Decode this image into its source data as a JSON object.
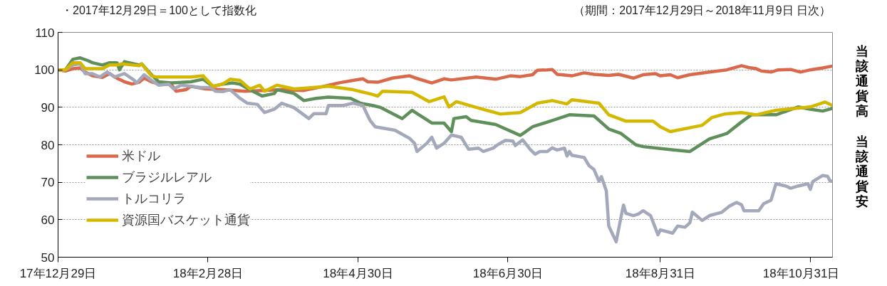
{
  "chart_data": {
    "type": "line",
    "title": "・2017年12月29日＝100として指数化",
    "subtitle": "（期間：2017年12月29日～2018年11月9日 日次）",
    "annotations": [
      "当該通貨高",
      "当該通貨安"
    ],
    "xlim": [
      "2017-12-29",
      "2018-11-09"
    ],
    "xticks": [
      {
        "value": "2017-12-29",
        "label": "17年12月29日"
      },
      {
        "value": "2018-02-28",
        "label": "18年2月28日"
      },
      {
        "value": "2018-04-30",
        "label": "18年4月30日"
      },
      {
        "value": "2018-06-30",
        "label": "18年6月30日"
      },
      {
        "value": "2018-08-31",
        "label": "18年8月31日"
      },
      {
        "value": "2018-10-31",
        "label": "18年10月31日"
      }
    ],
    "ylim": [
      50,
      110
    ],
    "yticks": [
      50,
      60,
      70,
      80,
      90,
      100,
      110
    ],
    "grid": "y",
    "legend": "bottom left",
    "series": [
      {
        "name": "米ドル",
        "color": "#d9694a",
        "x": [
          "2017-12-29",
          "2018-01-01",
          "2018-01-04",
          "2018-01-07",
          "2018-01-09",
          "2018-01-12",
          "2018-01-16",
          "2018-01-19",
          "2018-01-21",
          "2018-01-25",
          "2018-01-28",
          "2018-01-31",
          "2018-02-02",
          "2018-02-05",
          "2018-02-08",
          "2018-02-13",
          "2018-02-15",
          "2018-02-19",
          "2018-02-21",
          "2018-02-27",
          "2018-03-06",
          "2018-03-15",
          "2018-03-22",
          "2018-03-30",
          "2018-04-08",
          "2018-04-16",
          "2018-04-22",
          "2018-04-28",
          "2018-05-02",
          "2018-05-04",
          "2018-05-08",
          "2018-05-14",
          "2018-05-21",
          "2018-05-23",
          "2018-05-30",
          "2018-06-04",
          "2018-06-07",
          "2018-06-17",
          "2018-06-25",
          "2018-07-01",
          "2018-07-05",
          "2018-07-10",
          "2018-07-12",
          "2018-07-16",
          "2018-07-18",
          "2018-07-20",
          "2018-07-26",
          "2018-07-31",
          "2018-08-04",
          "2018-08-10",
          "2018-08-14",
          "2018-08-20",
          "2018-08-24",
          "2018-08-29",
          "2018-08-31",
          "2018-09-04",
          "2018-09-07",
          "2018-09-12",
          "2018-09-20",
          "2018-09-27",
          "2018-10-03",
          "2018-10-06",
          "2018-10-09",
          "2018-10-11",
          "2018-10-15",
          "2018-10-18",
          "2018-10-23",
          "2018-10-27",
          "2018-10-31",
          "2018-11-05",
          "2018-11-09"
        ],
        "values": [
          100,
          99.7,
          100.3,
          100.5,
          99.4,
          98.4,
          98,
          99,
          98.1,
          96.8,
          96.2,
          96.7,
          97.8,
          96.8,
          96.2,
          96.2,
          94.3,
          94.7,
          95.6,
          94.9,
          94.7,
          94.3,
          94.5,
          94.7,
          94.5,
          95.6,
          96.5,
          97.2,
          97.6,
          96.8,
          96.7,
          97.8,
          98.4,
          97.9,
          96.5,
          97.6,
          97.3,
          98.1,
          97.5,
          98.4,
          98.2,
          98.7,
          99.9,
          100,
          100.1,
          98.8,
          98.4,
          99.2,
          98.8,
          98.5,
          98.8,
          97.8,
          98.7,
          99,
          98.4,
          98.7,
          97.9,
          98.7,
          99.4,
          100,
          101.1,
          100.6,
          100.3,
          99.7,
          99.4,
          100,
          100.1,
          99.4,
          100,
          100.5,
          101
        ]
      },
      {
        "name": "ブラジルレアル",
        "color": "#5f8f5a",
        "x": [
          "2017-12-29",
          "2018-01-01",
          "2018-01-04",
          "2018-01-07",
          "2018-01-10",
          "2018-01-12",
          "2018-01-16",
          "2018-01-19",
          "2018-01-22",
          "2018-01-23",
          "2018-01-25",
          "2018-01-31",
          "2018-02-01",
          "2018-02-05",
          "2018-02-08",
          "2018-02-13",
          "2018-02-21",
          "2018-02-26",
          "2018-03-02",
          "2018-03-06",
          "2018-03-10",
          "2018-03-13",
          "2018-03-17",
          "2018-03-22",
          "2018-03-27",
          "2018-03-28",
          "2018-04-04",
          "2018-04-08",
          "2018-04-13",
          "2018-04-18",
          "2018-04-27",
          "2018-05-01",
          "2018-05-06",
          "2018-05-09",
          "2018-05-18",
          "2018-05-22",
          "2018-05-30",
          "2018-06-04",
          "2018-06-07",
          "2018-06-08",
          "2018-06-13",
          "2018-06-15",
          "2018-06-25",
          "2018-07-05",
          "2018-07-10",
          "2018-07-18",
          "2018-07-25",
          "2018-08-04",
          "2018-08-10",
          "2018-08-15",
          "2018-08-21",
          "2018-08-24",
          "2018-09-04",
          "2018-09-12",
          "2018-09-20",
          "2018-09-27",
          "2018-10-03",
          "2018-10-07",
          "2018-10-17",
          "2018-10-26",
          "2018-10-31",
          "2018-11-05",
          "2018-11-09"
        ],
        "values": [
          100,
          100,
          102.8,
          103.2,
          102.5,
          101.9,
          101.3,
          101.9,
          101.9,
          100,
          102.2,
          101.3,
          101.6,
          98.7,
          96.8,
          96.5,
          96.8,
          97.5,
          95.6,
          96.2,
          96.5,
          96.2,
          94.7,
          93,
          93.7,
          94.7,
          93.7,
          91.8,
          92.4,
          92.7,
          92.4,
          91.1,
          90.5,
          90,
          87,
          89.2,
          85.8,
          85.8,
          83.5,
          87,
          87.5,
          86.5,
          85.4,
          82.5,
          84.8,
          86.5,
          88,
          87.7,
          84.2,
          83,
          80,
          79.5,
          78.7,
          78.2,
          81.6,
          83,
          86.1,
          88,
          88,
          90.1,
          89.5,
          89,
          89.7
        ]
      },
      {
        "name": "トルコリラ",
        "color": "#a3a8bb",
        "x": [
          "2017-12-29",
          "2018-01-01",
          "2018-01-04",
          "2018-01-07",
          "2018-01-09",
          "2018-01-12",
          "2018-01-15",
          "2018-01-18",
          "2018-01-21",
          "2018-01-25",
          "2018-01-29",
          "2018-01-30",
          "2018-02-02",
          "2018-02-05",
          "2018-02-08",
          "2018-02-12",
          "2018-02-14",
          "2018-02-17",
          "2018-02-21",
          "2018-02-25",
          "2018-03-01",
          "2018-03-03",
          "2018-03-06",
          "2018-03-09",
          "2018-03-13",
          "2018-03-16",
          "2018-03-20",
          "2018-03-23",
          "2018-03-27",
          "2018-03-30",
          "2018-04-04",
          "2018-04-10",
          "2018-04-12",
          "2018-04-17",
          "2018-04-18",
          "2018-04-24",
          "2018-04-28",
          "2018-05-02",
          "2018-05-04",
          "2018-05-05",
          "2018-05-07",
          "2018-05-15",
          "2018-05-21",
          "2018-05-23",
          "2018-05-24",
          "2018-05-28",
          "2018-05-30",
          "2018-06-01",
          "2018-06-04",
          "2018-06-07",
          "2018-06-11",
          "2018-06-14",
          "2018-06-18",
          "2018-06-20",
          "2018-06-24",
          "2018-06-26",
          "2018-06-29",
          "2018-07-02",
          "2018-07-03",
          "2018-07-06",
          "2018-07-09",
          "2018-07-11",
          "2018-07-13",
          "2018-07-16",
          "2018-07-18",
          "2018-07-20",
          "2018-07-23",
          "2018-07-24",
          "2018-07-25",
          "2018-07-26",
          "2018-07-31",
          "2018-08-02",
          "2018-08-04",
          "2018-08-06",
          "2018-08-07",
          "2018-08-09",
          "2018-08-10",
          "2018-08-13",
          "2018-08-15",
          "2018-08-16",
          "2018-08-17",
          "2018-08-20",
          "2018-08-22",
          "2018-08-24",
          "2018-08-27",
          "2018-08-30",
          "2018-08-31",
          "2018-09-05",
          "2018-09-07",
          "2018-09-10",
          "2018-09-12",
          "2018-09-13",
          "2018-09-17",
          "2018-09-20",
          "2018-09-25",
          "2018-09-28",
          "2018-10-01",
          "2018-10-03",
          "2018-10-04",
          "2018-10-10",
          "2018-10-12",
          "2018-10-15",
          "2018-10-17",
          "2018-10-21",
          "2018-10-23",
          "2018-10-26",
          "2018-10-30",
          "2018-10-31",
          "2018-11-01",
          "2018-11-05",
          "2018-11-07",
          "2018-11-08",
          "2018-11-09"
        ],
        "values": [
          100,
          100,
          101.3,
          101.6,
          99,
          99,
          98.1,
          99.4,
          98.1,
          99,
          97.2,
          96.5,
          98.7,
          97.2,
          95.9,
          96.2,
          94.9,
          95.9,
          95.6,
          95.3,
          95.3,
          94.3,
          94.2,
          94.7,
          92.4,
          91.1,
          90.8,
          88.6,
          89.5,
          91.1,
          89.9,
          87,
          88.3,
          88.3,
          90.5,
          90.5,
          91.1,
          90.5,
          87.7,
          86.4,
          84.8,
          83.9,
          81.7,
          80.4,
          78.2,
          80.4,
          82,
          79.1,
          80.4,
          82.6,
          82,
          78.8,
          79.1,
          78.2,
          79.1,
          80.1,
          81.2,
          81,
          79.8,
          81.3,
          78.8,
          77.5,
          78.2,
          78.2,
          79.2,
          78.6,
          79.1,
          77,
          78.2,
          77.2,
          76.6,
          74.4,
          73.4,
          70.3,
          71.5,
          67.7,
          58.3,
          54.1,
          60.8,
          63.9,
          61.7,
          61.1,
          61.5,
          62.4,
          61.1,
          56,
          57.3,
          56.4,
          58.3,
          58,
          59.2,
          62,
          59.8,
          61.1,
          62,
          63.6,
          64.6,
          64,
          62.4,
          62.4,
          64.3,
          65.2,
          69.6,
          69,
          68.4,
          69,
          69.6,
          68.1,
          70.2,
          71.8,
          71.6,
          70.3,
          70.3
        ]
      },
      {
        "name": "資源国バスケット通貨",
        "color": "#d4b800",
        "x": [
          "2017-12-29",
          "2018-01-01",
          "2018-01-04",
          "2018-01-07",
          "2018-01-09",
          "2018-01-16",
          "2018-01-19",
          "2018-01-22",
          "2018-01-24",
          "2018-01-31",
          "2018-02-01",
          "2018-02-05",
          "2018-02-07",
          "2018-02-13",
          "2018-02-21",
          "2018-02-26",
          "2018-03-02",
          "2018-03-06",
          "2018-03-09",
          "2018-03-13",
          "2018-03-17",
          "2018-03-21",
          "2018-03-23",
          "2018-03-28",
          "2018-04-04",
          "2018-04-10",
          "2018-04-18",
          "2018-04-28",
          "2018-05-06",
          "2018-05-08",
          "2018-05-10",
          "2018-05-22",
          "2018-05-29",
          "2018-06-04",
          "2018-06-06",
          "2018-06-09",
          "2018-06-19",
          "2018-06-27",
          "2018-07-05",
          "2018-07-12",
          "2018-07-18",
          "2018-07-24",
          "2018-07-26",
          "2018-08-06",
          "2018-08-10",
          "2018-08-17",
          "2018-08-28",
          "2018-08-31",
          "2018-09-04",
          "2018-09-17",
          "2018-09-21",
          "2018-09-26",
          "2018-10-03",
          "2018-10-09",
          "2018-10-17",
          "2018-10-31",
          "2018-11-06",
          "2018-11-09"
        ],
        "values": [
          100,
          100,
          101.9,
          101.9,
          100.3,
          100.3,
          101.3,
          101.3,
          101.6,
          101.1,
          101.6,
          98.4,
          98.1,
          98.1,
          98.1,
          98.4,
          95.6,
          96.2,
          97.5,
          97.2,
          94.9,
          95.9,
          94.3,
          95.9,
          94.9,
          95.2,
          95.6,
          94.7,
          93.4,
          93,
          94.3,
          94,
          91.5,
          92.8,
          90.1,
          91.5,
          89.6,
          88.2,
          88.6,
          91.1,
          91.8,
          90.9,
          92,
          91.1,
          88,
          86.3,
          86.3,
          84.8,
          83.5,
          85.2,
          87.3,
          88.2,
          88.6,
          88,
          89.2,
          90.1,
          91.4,
          90.5
        ]
      }
    ]
  }
}
